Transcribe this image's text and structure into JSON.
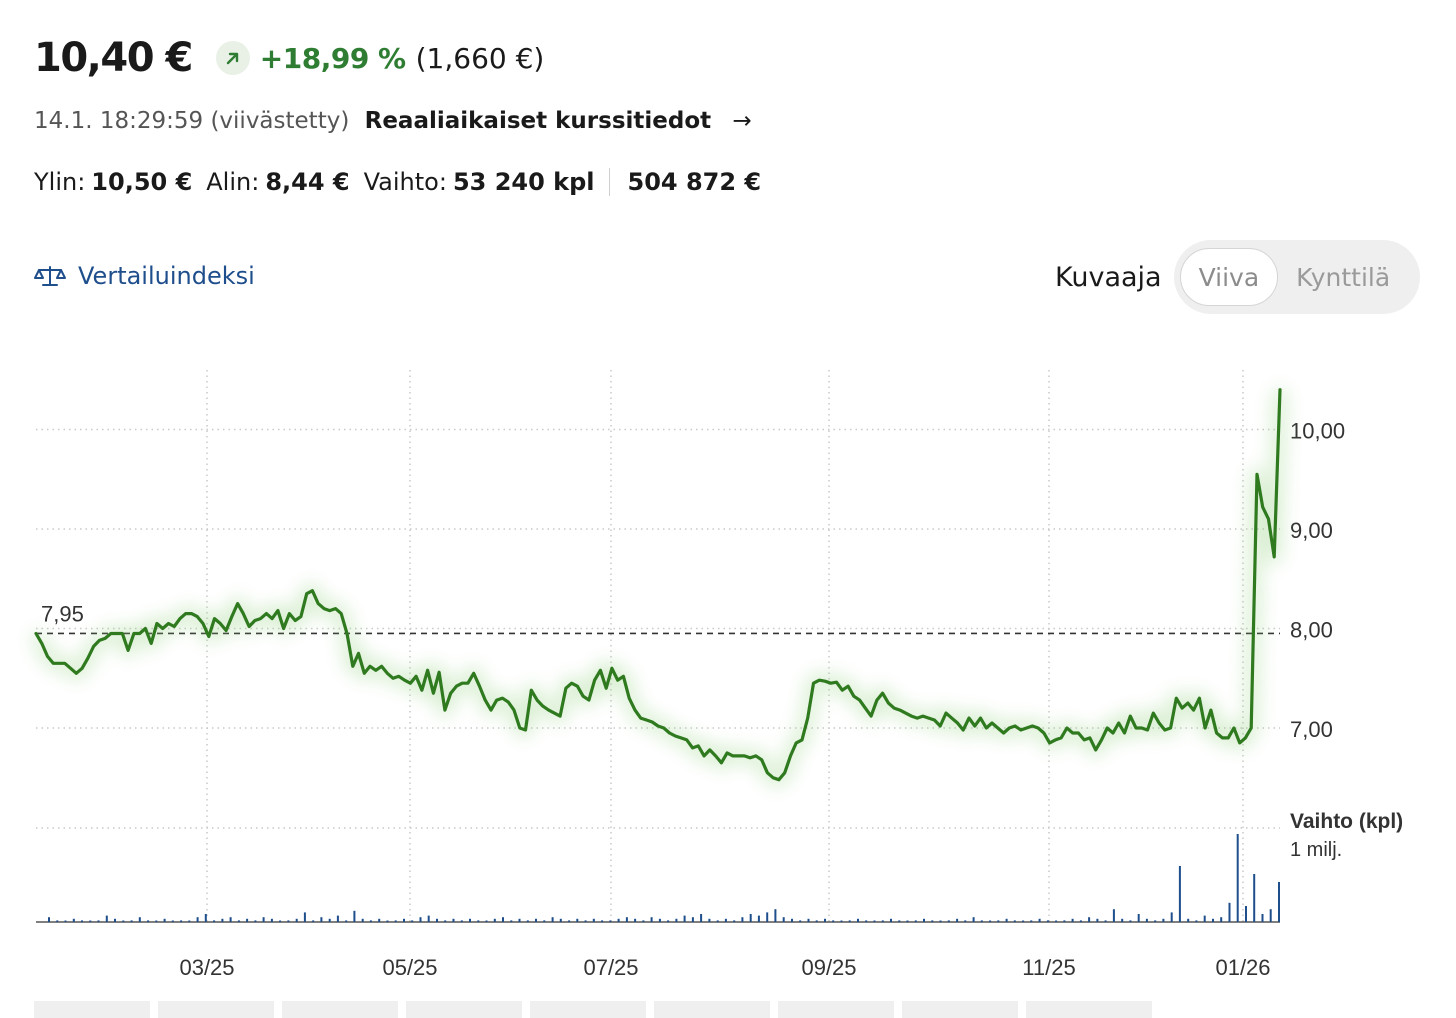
{
  "quote": {
    "price": "10,40 €",
    "change_pct": "+18,99 %",
    "change_abs": "(1,660 €)",
    "change_icon": "arrow-up-right-icon",
    "timestamp": "14.1. 18:29:59",
    "delay_note": "(viivästetty)",
    "realtime_link": "Reaaliaikaiset kurssitiedot",
    "realtime_arrow": "→"
  },
  "stats": {
    "high_label": "Ylin:",
    "high": "10,50 €",
    "low_label": "Alin:",
    "low": "8,44 €",
    "volume_label": "Vaihto:",
    "volume": "53 240 kpl",
    "turnover": "504 872 €"
  },
  "benchmark": {
    "label": "Vertailuindeksi",
    "icon": "scale-icon"
  },
  "chart_type": {
    "label": "Kuvaaja",
    "options": [
      "Viiva",
      "Kynttilä"
    ],
    "selected": "Viiva"
  },
  "colors": {
    "up": "#2e7d32",
    "line": "#2f7a1f",
    "link": "#1f4e8c",
    "volume": "#1f4e8c"
  },
  "chart_data": {
    "type": "line",
    "x_tick_labels": [
      "03/25",
      "05/25",
      "07/25",
      "09/25",
      "11/25",
      "01/26"
    ],
    "y_tick_labels": [
      "7,00",
      "8,00",
      "9,00",
      "10,00"
    ],
    "ylim": [
      6.0,
      10.5
    ],
    "reference": {
      "value": 7.95,
      "label": "7,95",
      "style": "dashed"
    },
    "grid": "dotted",
    "volume_label": "Vaihto (kpl)",
    "volume_scale_label": "1 milj.",
    "series": [
      {
        "values": [
          7.95,
          7.85,
          7.72,
          7.65,
          7.65,
          7.65,
          7.6,
          7.55,
          7.6,
          7.7,
          7.82,
          7.88,
          7.9,
          7.95,
          7.95,
          7.95,
          7.78,
          7.95,
          7.95,
          8.0,
          7.85,
          8.05,
          8.0,
          8.05,
          8.02,
          8.1,
          8.15,
          8.15,
          8.12,
          8.05,
          7.92,
          8.1,
          8.05,
          7.98,
          8.12,
          8.25,
          8.15,
          8.02,
          8.08,
          8.1,
          8.15,
          8.1,
          8.18,
          8.0,
          8.15,
          8.08,
          8.12,
          8.35,
          8.38,
          8.25,
          8.2,
          8.18,
          8.2,
          8.15,
          7.95,
          7.62,
          7.75,
          7.55,
          7.62,
          7.58,
          7.62,
          7.55,
          7.5,
          7.52,
          7.48,
          7.45,
          7.52,
          7.38,
          7.58,
          7.35,
          7.56,
          7.18,
          7.35,
          7.42,
          7.45,
          7.45,
          7.55,
          7.42,
          7.28,
          7.18,
          7.28,
          7.3,
          7.26,
          7.18,
          7.0,
          6.98,
          7.38,
          7.28,
          7.22,
          7.18,
          7.15,
          7.12,
          7.4,
          7.45,
          7.42,
          7.32,
          7.28,
          7.48,
          7.58,
          7.4,
          7.6,
          7.48,
          7.52,
          7.3,
          7.18,
          7.1,
          7.08,
          7.06,
          7.02,
          7.0,
          6.95,
          6.92,
          6.9,
          6.88,
          6.8,
          6.82,
          6.72,
          6.78,
          6.72,
          6.65,
          6.75,
          6.72,
          6.72,
          6.72,
          6.7,
          6.72,
          6.68,
          6.55,
          6.5,
          6.48,
          6.55,
          6.72,
          6.85,
          6.88,
          7.1,
          7.45,
          7.48,
          7.47,
          7.45,
          7.46,
          7.38,
          7.42,
          7.32,
          7.28,
          7.2,
          7.12,
          7.28,
          7.35,
          7.25,
          7.2,
          7.18,
          7.15,
          7.12,
          7.1,
          7.12,
          7.1,
          7.08,
          7.02,
          7.15,
          7.1,
          7.05,
          6.98,
          7.1,
          7.02,
          7.1,
          7.0,
          7.05,
          7.0,
          6.95,
          7.0,
          7.02,
          6.98,
          7.0,
          7.02,
          7.0,
          6.95,
          6.85,
          6.88,
          6.9,
          7.0,
          6.95,
          6.95,
          6.88,
          6.9,
          6.78,
          6.88,
          7.0,
          6.95,
          7.05,
          6.95,
          7.12,
          7.0,
          7.0,
          6.98,
          7.15,
          7.05,
          6.98,
          7.0,
          7.3,
          7.2,
          7.25,
          7.18,
          7.3,
          7.0,
          7.18,
          6.95,
          6.9,
          6.9,
          7.0,
          6.85,
          6.9,
          7.0,
          9.55,
          9.22,
          9.1,
          8.72,
          10.4
        ]
      }
    ],
    "volume": [
      0.03,
      0.01,
      0.0,
      0.02,
      0.01,
      0.0,
      0.01,
      0.04,
      0.02,
      0.0,
      0.01,
      0.03,
      0.01,
      0.0,
      0.02,
      0.0,
      0.01,
      0.0,
      0.03,
      0.05,
      0.01,
      0.02,
      0.03,
      0.01,
      0.02,
      0.01,
      0.03,
      0.02,
      0.0,
      0.01,
      0.02,
      0.06,
      0.01,
      0.03,
      0.02,
      0.04,
      0.01,
      0.07,
      0.02,
      0.01,
      0.02,
      0.0,
      0.01,
      0.02,
      0.01,
      0.03,
      0.04,
      0.02,
      0.01,
      0.02,
      0.01,
      0.02,
      0.01,
      0.0,
      0.02,
      0.03,
      0.01,
      0.02,
      0.01,
      0.02,
      0.01,
      0.03,
      0.02,
      0.01,
      0.02,
      0.01,
      0.02,
      0.01,
      0.0,
      0.02,
      0.03,
      0.02,
      0.01,
      0.03,
      0.02,
      0.01,
      0.02,
      0.04,
      0.03,
      0.05,
      0.02,
      0.01,
      0.02,
      0.01,
      0.03,
      0.05,
      0.04,
      0.06,
      0.08,
      0.03,
      0.02,
      0.01,
      0.02,
      0.01,
      0.02,
      0.01,
      0.0,
      0.01,
      0.02,
      0.01,
      0.0,
      0.01,
      0.02,
      0.01,
      0.0,
      0.01,
      0.02,
      0.01,
      0.0,
      0.01,
      0.02,
      0.01,
      0.03,
      0.01,
      0.0,
      0.01,
      0.02,
      0.01,
      0.0,
      0.01,
      0.02,
      0.01,
      0.0,
      0.01,
      0.02,
      0.01,
      0.03,
      0.02,
      0.01,
      0.08,
      0.02,
      0.01,
      0.05,
      0.02,
      0.01,
      0.02,
      0.06,
      0.35,
      0.02,
      0.01,
      0.04,
      0.02,
      0.03,
      0.12,
      0.55,
      0.1,
      0.3,
      0.05,
      0.08,
      0.25
    ]
  }
}
